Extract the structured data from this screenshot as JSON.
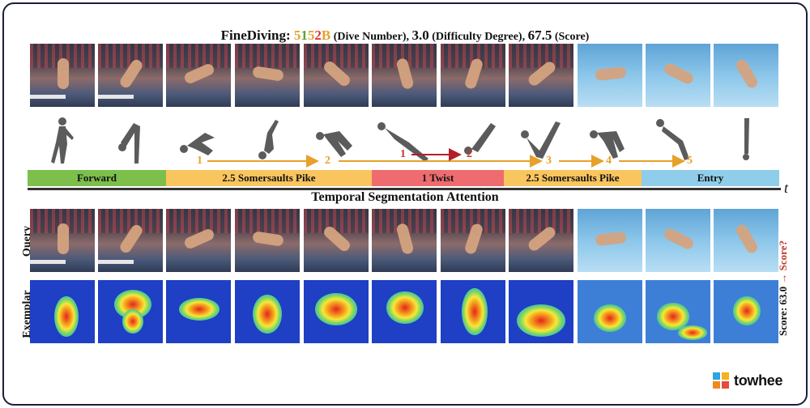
{
  "title": {
    "prefix": "FineDiving: ",
    "dive_number_parts": [
      "5",
      "1",
      "5",
      "2",
      "B"
    ],
    "dive_number_label": " (Dive Number), ",
    "difficulty": "3.0",
    "difficulty_label": " (Difficulty Degree), ",
    "score": "67.5",
    "score_label": " (Score)"
  },
  "segments": [
    {
      "label": "Forward",
      "color": "#7cbf4a"
    },
    {
      "label": "2.5 Somersaults Pike",
      "color": "#f9c55f"
    },
    {
      "label": "1 Twist",
      "color": "#ee6c6f"
    },
    {
      "label": "2.5 Somersaults Pike",
      "color": "#f9c55f"
    },
    {
      "label": "Entry",
      "color": "#8fcdea"
    }
  ],
  "step_numbers": [
    "1",
    "2",
    "1",
    "2",
    "3",
    "4",
    "5"
  ],
  "axis_label": "t",
  "subtitle": "Temporal Segmentation Attention",
  "row_labels": {
    "query": "Query",
    "exemplar": "Exemplar"
  },
  "score_annotation": {
    "score_text": "Score: 63.0",
    "arrow": "→",
    "query_score": "Score?"
  },
  "brand": {
    "name": "towhee"
  },
  "frame_types": [
    "arena",
    "arena",
    "arena",
    "arena",
    "arena",
    "arena",
    "arena",
    "arena",
    "pool",
    "pool",
    "pool"
  ]
}
